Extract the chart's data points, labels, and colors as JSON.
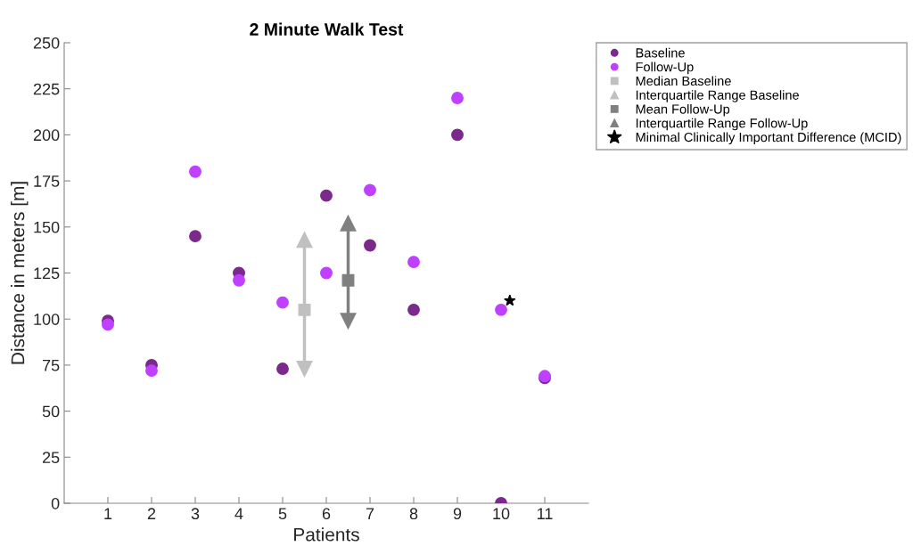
{
  "chart_data": {
    "type": "scatter",
    "title": "2 Minute Walk Test",
    "xlabel": "Patients",
    "ylabel": "Distance in meters [m]",
    "xlim": [
      0,
      12
    ],
    "xticks": [
      1,
      2,
      3,
      4,
      5,
      6,
      7,
      8,
      9,
      10,
      11
    ],
    "ylim": [
      0,
      250
    ],
    "yticks": [
      0,
      25,
      50,
      75,
      100,
      125,
      150,
      175,
      200,
      225,
      250
    ],
    "grid": false,
    "legend": "top right",
    "series": [
      {
        "name": "Baseline",
        "marker": "circle",
        "color": "#7b2a8c",
        "x": [
          1,
          2,
          3,
          4,
          5,
          6,
          7,
          8,
          9,
          10,
          11
        ],
        "values": [
          99,
          75,
          145,
          125,
          73,
          167,
          140,
          105,
          200,
          0,
          68
        ]
      },
      {
        "name": "Follow-Up",
        "marker": "circle",
        "color": "#bf40ff",
        "x": [
          1,
          2,
          3,
          4,
          5,
          6,
          7,
          8,
          9,
          10,
          11
        ],
        "values": [
          97,
          72,
          180,
          121,
          109,
          125,
          170,
          131,
          220,
          105,
          69
        ]
      },
      {
        "name": "Median Baseline",
        "marker": "square",
        "color": "#c0c0c0",
        "x": [
          5.5
        ],
        "values": [
          105
        ]
      },
      {
        "name": "Interquartile Range Baseline",
        "type": "line",
        "marker": "triangle",
        "color": "#c0c0c0",
        "x": [
          5.5,
          5.5
        ],
        "values": [
          73,
          143
        ]
      },
      {
        "name": "Mean Follow-Up",
        "marker": "square",
        "color": "#808080",
        "x": [
          6.5
        ],
        "values": [
          121
        ]
      },
      {
        "name": "Interquartile Range Follow-Up",
        "type": "line",
        "marker": "triangle",
        "color": "#808080",
        "x": [
          6.5,
          6.5
        ],
        "values": [
          99,
          152
        ]
      },
      {
        "name": "Minimal Clinically Important Difference (MCID)",
        "marker": "star",
        "color": "#000000",
        "x": [
          10.2
        ],
        "values": [
          110
        ]
      }
    ]
  }
}
